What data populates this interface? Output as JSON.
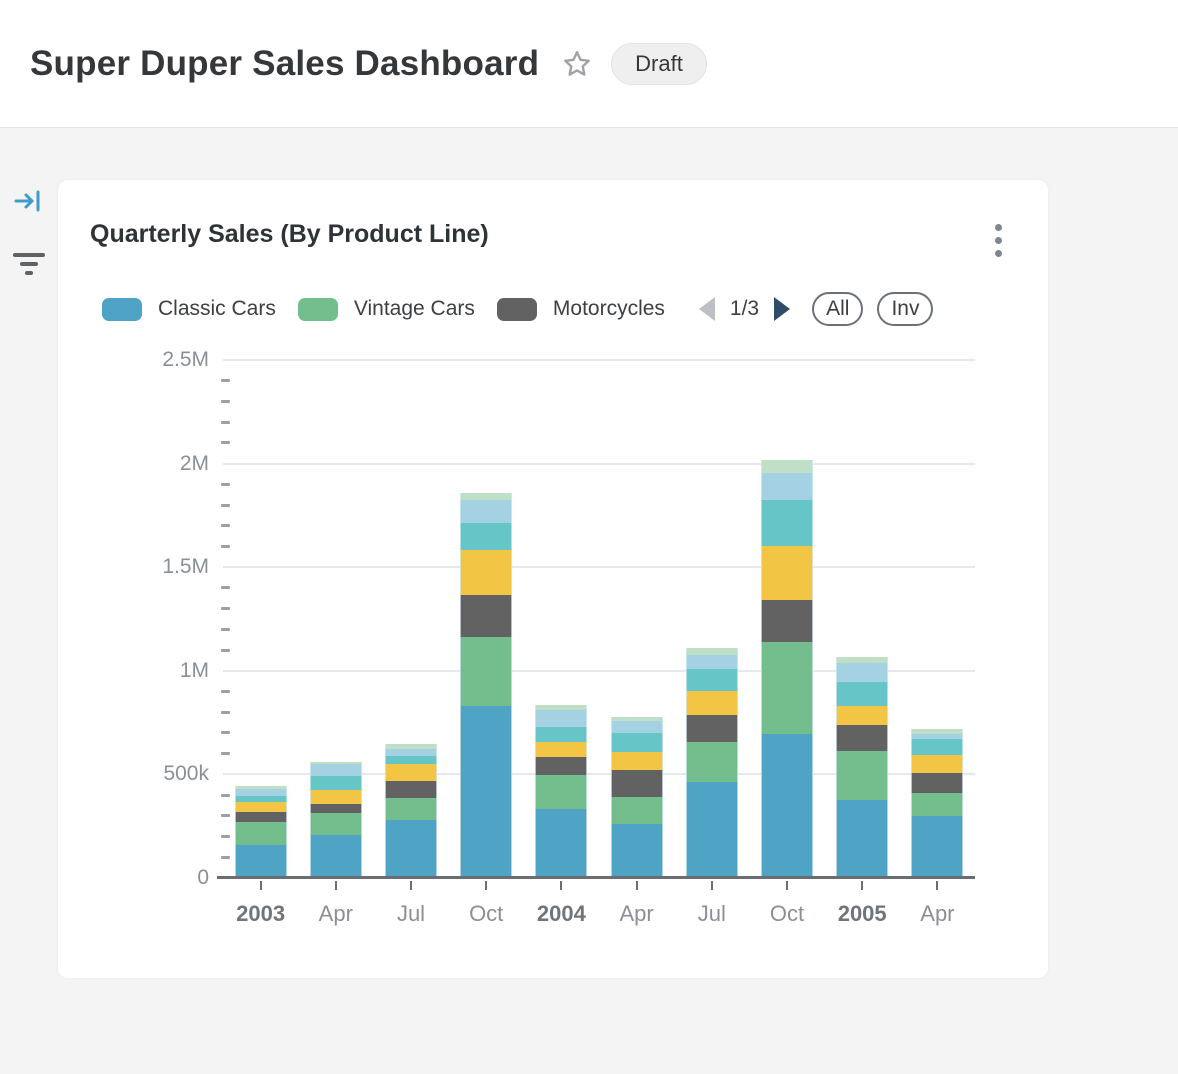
{
  "header": {
    "title": "Super Duper Sales Dashboard",
    "status_badge": "Draft"
  },
  "sidebar": {
    "icons": [
      "collapse-panel",
      "filter"
    ]
  },
  "card": {
    "title": "Quarterly Sales (By Product Line)",
    "pager": {
      "label": "1/3",
      "current_page": 1,
      "total_pages": 3
    },
    "buttons": {
      "all": "All",
      "inv": "Inv"
    }
  },
  "legend": {
    "items": [
      {
        "label": "Classic Cars",
        "color": "#4fa3c4"
      },
      {
        "label": "Vintage Cars",
        "color": "#74be8d"
      },
      {
        "label": "Motorcycles",
        "color": "#626262"
      }
    ]
  },
  "colors": {
    "accent_blue": "#3e9ccb",
    "grid": "#e4e8f0",
    "axis": "#6a6e72",
    "pager_arrow_active": "#2f4d66",
    "pager_arrow_disabled": "#bcc0c4"
  },
  "chart_data": {
    "type": "bar",
    "stacked": true,
    "title": "Quarterly Sales (By Product Line)",
    "categories": [
      "2003",
      "Apr",
      "Jul",
      "Oct",
      "2004",
      "Apr",
      "Jul",
      "Oct",
      "2005",
      "Apr"
    ],
    "series": [
      {
        "name": "Classic Cars",
        "in_legend": true,
        "color": "#4fa3c4",
        "values": [
          161000,
          206000,
          278000,
          829000,
          335000,
          262000,
          463000,
          697000,
          378000,
          298000
        ]
      },
      {
        "name": "Vintage Cars",
        "in_legend": true,
        "color": "#74be8d",
        "values": [
          111000,
          109000,
          106000,
          335000,
          161000,
          128000,
          193000,
          442000,
          233000,
          112000
        ]
      },
      {
        "name": "Motorcycles",
        "in_legend": true,
        "color": "#626262",
        "values": [
          48000,
          41000,
          84000,
          201000,
          88000,
          132000,
          129000,
          205000,
          129000,
          97000
        ]
      },
      {
        "name": "",
        "in_legend": false,
        "color": "#f2c644",
        "values": [
          48000,
          68000,
          84000,
          220000,
          72000,
          85000,
          117000,
          257000,
          88000,
          89000
        ]
      },
      {
        "name": "",
        "in_legend": false,
        "color": "#66c5c6",
        "values": [
          27000,
          69000,
          37000,
          128000,
          72000,
          92000,
          108000,
          222000,
          117000,
          77000
        ]
      },
      {
        "name": "",
        "in_legend": false,
        "color": "#a5d2e3",
        "values": [
          35000,
          56000,
          35000,
          113000,
          84000,
          58000,
          68000,
          132000,
          92000,
          24000
        ]
      },
      {
        "name": "",
        "in_legend": false,
        "color": "#bfdfc6",
        "values": [
          13000,
          13000,
          24000,
          34000,
          24000,
          19000,
          32000,
          61000,
          32000,
          24000
        ]
      }
    ],
    "y_ticks": [
      {
        "value": 2500000,
        "label": "2.5M"
      },
      {
        "value": 2000000,
        "label": "2M"
      },
      {
        "value": 1500000,
        "label": "1.5M"
      },
      {
        "value": 1000000,
        "label": "1M"
      },
      {
        "value": 500000,
        "label": "500k"
      },
      {
        "value": 0,
        "label": "0"
      }
    ],
    "ylim": [
      0,
      2500000
    ],
    "y_major_step": 500000,
    "y_minor_step": 100000,
    "grid": "horizontal-major",
    "legend_position": "top",
    "legend_pagination": "1/3",
    "xlabel": "",
    "ylabel": ""
  }
}
